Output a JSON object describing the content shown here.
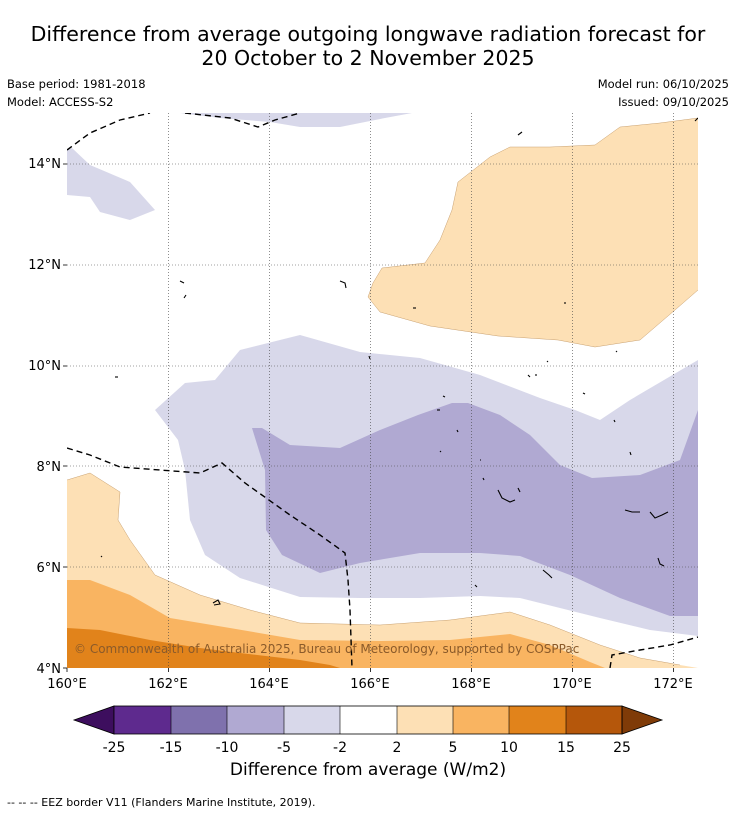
{
  "title": {
    "line1": "Difference from average outgoing longwave radiation forecast for",
    "line2": "20 October to 2 November 2025"
  },
  "meta": {
    "base_period": "Base period: 1981-2018",
    "model": "Model: ACCESS-S2",
    "model_run": "Model run: 06/10/2025",
    "issued": "Issued: 09/10/2025"
  },
  "map": {
    "lon_range": [
      160,
      172.5
    ],
    "lat_range": [
      4,
      15
    ],
    "lat_ticks": [
      "14°N",
      "12°N",
      "10°N",
      "8°N",
      "6°N",
      "4°N"
    ],
    "lon_ticks": [
      "160°E",
      "162°E",
      "164°E",
      "166°E",
      "168°E",
      "170°E",
      "172°E"
    ],
    "copyright": "© Commonwealth of Australia 2025, Bureau of Meteorology, supported by COSPPac",
    "colors": {
      "neg15": "#7f71ad",
      "neg10": "#b0a9d2",
      "neg5": "#d8d8ea",
      "pos2": "#fde0b5",
      "pos5": "#f9b461",
      "pos10": "#e1831b",
      "eez": "#000000"
    }
  },
  "colorbar": {
    "title": "Difference from average (W/m2)",
    "ticks": [
      "-25",
      "-15",
      "-10",
      "-5",
      "-2",
      "2",
      "5",
      "10",
      "15",
      "25"
    ],
    "colors": [
      "#5e2a8e",
      "#7f71ad",
      "#b0a9d2",
      "#d8d8ea",
      "#ffffff",
      "#fde0b5",
      "#f9b461",
      "#e1831b",
      "#b5570b"
    ],
    "extend_low": "#3d0e5e",
    "extend_high": "#7f3b08"
  },
  "footer": {
    "legend": "--  --  -- EEZ border V11 (Flanders Marine Institute, 2019)."
  }
}
